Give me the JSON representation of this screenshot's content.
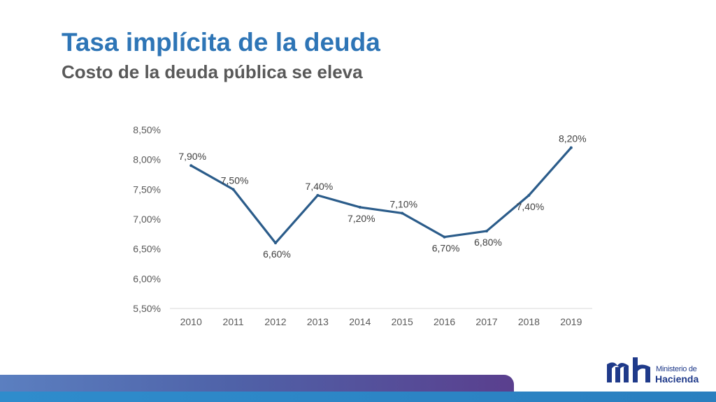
{
  "slide": {
    "title": "Tasa implícita de la deuda",
    "subtitle": "Costo de la deuda pública se eleva"
  },
  "logo": {
    "line1": "Ministerio de",
    "line2": "Hacienda"
  },
  "colors": {
    "title": "#2e75b6",
    "subtitle": "#595959",
    "series_line": "#2b5c8a",
    "axis": "#d9d9d9",
    "logo": "#1f3a8a"
  },
  "chart_data": {
    "type": "line",
    "x": [
      "2010",
      "2011",
      "2012",
      "2013",
      "2014",
      "2015",
      "2016",
      "2017",
      "2018",
      "2019"
    ],
    "series": [
      {
        "values": [
          7.9,
          7.5,
          6.6,
          7.4,
          7.2,
          7.1,
          6.7,
          6.8,
          7.4,
          8.2
        ],
        "data_labels": [
          "7,90%",
          "7,50%",
          "6,60%",
          "7,40%",
          "7,20%",
          "7,10%",
          "6,70%",
          "6,80%",
          "7,40%",
          "8,20%"
        ]
      }
    ],
    "y_ticks": [
      5.5,
      6.0,
      6.5,
      7.0,
      7.5,
      8.0,
      8.5
    ],
    "y_tick_labels": [
      "5,50%",
      "6,00%",
      "6,50%",
      "7,00%",
      "7,50%",
      "8,00%",
      "8,50%"
    ],
    "ylim": [
      5.5,
      8.5
    ],
    "grid": false,
    "legend": "none",
    "title": "",
    "xlabel": "",
    "ylabel": ""
  }
}
